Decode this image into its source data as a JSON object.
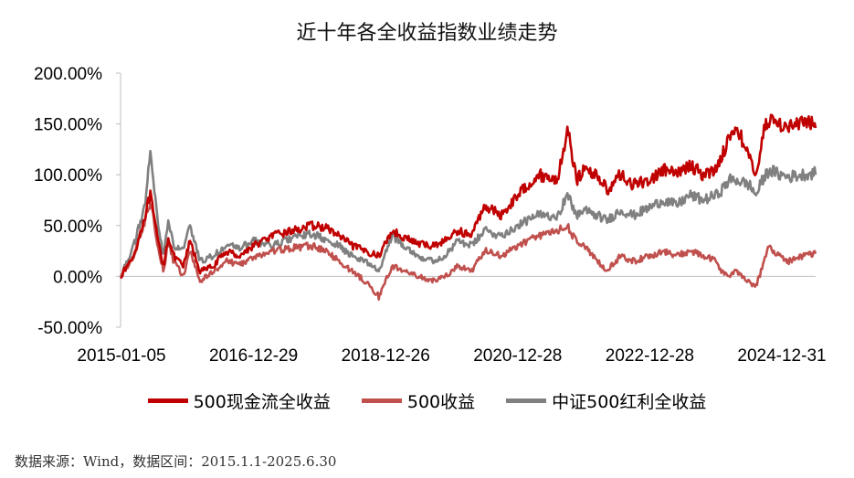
{
  "chart_data": {
    "type": "line",
    "title": "近十年各全收益指数业绩走势",
    "xlabel": "",
    "ylabel": "",
    "x_tick_labels": [
      "2015-01-05",
      "2016-12-29",
      "2018-12-26",
      "2020-12-28",
      "2022-12-28",
      "2024-12-31"
    ],
    "x_range": [
      "2015-01-05",
      "2025-06-30"
    ],
    "ylim": [
      -50,
      200
    ],
    "y_ticks": [
      -50,
      0,
      50,
      100,
      150,
      200
    ],
    "y_tick_labels": [
      "-50.00%",
      "0.00%",
      "50.00%",
      "100.00%",
      "150.00%",
      "200.00%"
    ],
    "grid": false,
    "legend_position": "bottom",
    "series": [
      {
        "name": "500现金流全收益",
        "color": "#c00000",
        "x": [
          2015.0,
          2015.2,
          2015.37,
          2015.45,
          2015.55,
          2015.65,
          2015.72,
          2015.8,
          2015.95,
          2016.05,
          2016.2,
          2016.4,
          2016.6,
          2016.8,
          2017.0,
          2017.3,
          2017.6,
          2017.9,
          2018.1,
          2018.3,
          2018.5,
          2018.7,
          2018.9,
          2019.1,
          2019.3,
          2019.5,
          2019.7,
          2019.9,
          2020.1,
          2020.3,
          2020.5,
          2020.75,
          2021.0,
          2021.3,
          2021.6,
          2021.75,
          2021.82,
          2021.9,
          2022.0,
          2022.2,
          2022.35,
          2022.55,
          2022.75,
          2023.0,
          2023.2,
          2023.4,
          2023.6,
          2023.8,
          2024.0,
          2024.08,
          2024.2,
          2024.3,
          2024.5,
          2024.6,
          2024.7,
          2024.8,
          2024.95,
          2025.1,
          2025.3,
          2025.5
        ],
        "values": [
          0,
          20,
          60,
          80,
          40,
          10,
          40,
          20,
          10,
          35,
          5,
          10,
          25,
          20,
          30,
          40,
          45,
          50,
          48,
          40,
          30,
          25,
          20,
          45,
          38,
          32,
          30,
          35,
          45,
          40,
          70,
          60,
          80,
          100,
          95,
          145,
          120,
          95,
          105,
          100,
          85,
          100,
          90,
          95,
          105,
          100,
          110,
          100,
          105,
          120,
          135,
          150,
          115,
          100,
          140,
          155,
          150,
          148,
          150,
          152
        ]
      },
      {
        "name": "500收益",
        "color": "#c0504d",
        "x": [
          2015.0,
          2015.2,
          2015.37,
          2015.45,
          2015.55,
          2015.65,
          2015.72,
          2015.8,
          2015.95,
          2016.05,
          2016.2,
          2016.4,
          2016.6,
          2016.8,
          2017.0,
          2017.3,
          2017.6,
          2017.9,
          2018.1,
          2018.3,
          2018.5,
          2018.7,
          2018.9,
          2019.1,
          2019.3,
          2019.5,
          2019.7,
          2019.9,
          2020.1,
          2020.3,
          2020.5,
          2020.75,
          2021.0,
          2021.3,
          2021.6,
          2021.75,
          2021.82,
          2021.9,
          2022.0,
          2022.2,
          2022.35,
          2022.55,
          2022.75,
          2023.0,
          2023.2,
          2023.4,
          2023.6,
          2023.8,
          2024.0,
          2024.08,
          2024.2,
          2024.3,
          2024.5,
          2024.6,
          2024.7,
          2024.8,
          2024.95,
          2025.1,
          2025.3,
          2025.5
        ],
        "values": [
          0,
          20,
          55,
          75,
          35,
          5,
          35,
          15,
          0,
          25,
          -5,
          5,
          15,
          12,
          18,
          25,
          28,
          30,
          25,
          15,
          5,
          -5,
          -20,
          10,
          5,
          0,
          -5,
          0,
          10,
          5,
          25,
          20,
          30,
          40,
          45,
          50,
          40,
          35,
          30,
          15,
          5,
          20,
          15,
          20,
          25,
          20,
          25,
          20,
          15,
          5,
          0,
          5,
          -5,
          -10,
          10,
          30,
          20,
          15,
          20,
          22
        ]
      },
      {
        "name": "中证500红利全收益",
        "color": "#808080",
        "x": [
          2015.0,
          2015.2,
          2015.37,
          2015.45,
          2015.55,
          2015.65,
          2015.72,
          2015.8,
          2015.95,
          2016.05,
          2016.2,
          2016.4,
          2016.6,
          2016.8,
          2017.0,
          2017.3,
          2017.6,
          2017.9,
          2018.1,
          2018.3,
          2018.5,
          2018.7,
          2018.9,
          2019.1,
          2019.3,
          2019.5,
          2019.7,
          2019.9,
          2020.1,
          2020.3,
          2020.5,
          2020.75,
          2021.0,
          2021.3,
          2021.6,
          2021.75,
          2021.82,
          2021.9,
          2022.0,
          2022.2,
          2022.35,
          2022.55,
          2022.75,
          2023.0,
          2023.2,
          2023.4,
          2023.6,
          2023.8,
          2024.0,
          2024.08,
          2024.2,
          2024.3,
          2024.5,
          2024.6,
          2024.7,
          2024.8,
          2024.95,
          2025.1,
          2025.3,
          2025.5
        ],
        "values": [
          0,
          30,
          70,
          120,
          60,
          20,
          55,
          30,
          25,
          50,
          15,
          20,
          30,
          28,
          35,
          30,
          38,
          42,
          35,
          30,
          20,
          15,
          5,
          40,
          30,
          20,
          15,
          20,
          35,
          30,
          45,
          40,
          50,
          60,
          60,
          80,
          70,
          60,
          65,
          60,
          55,
          65,
          60,
          68,
          75,
          70,
          80,
          75,
          80,
          85,
          95,
          95,
          90,
          80,
          95,
          105,
          100,
          98,
          100,
          102
        ]
      }
    ]
  },
  "legend": {
    "items": [
      {
        "label": "500现金流全收益",
        "color": "#c00000"
      },
      {
        "label": "500收益",
        "color": "#c0504d"
      },
      {
        "label": "中证500红利全收益",
        "color": "#808080"
      }
    ]
  },
  "footer": {
    "source": "数据来源：Wind，数据区间：2015.1.1-2025.6.30"
  }
}
